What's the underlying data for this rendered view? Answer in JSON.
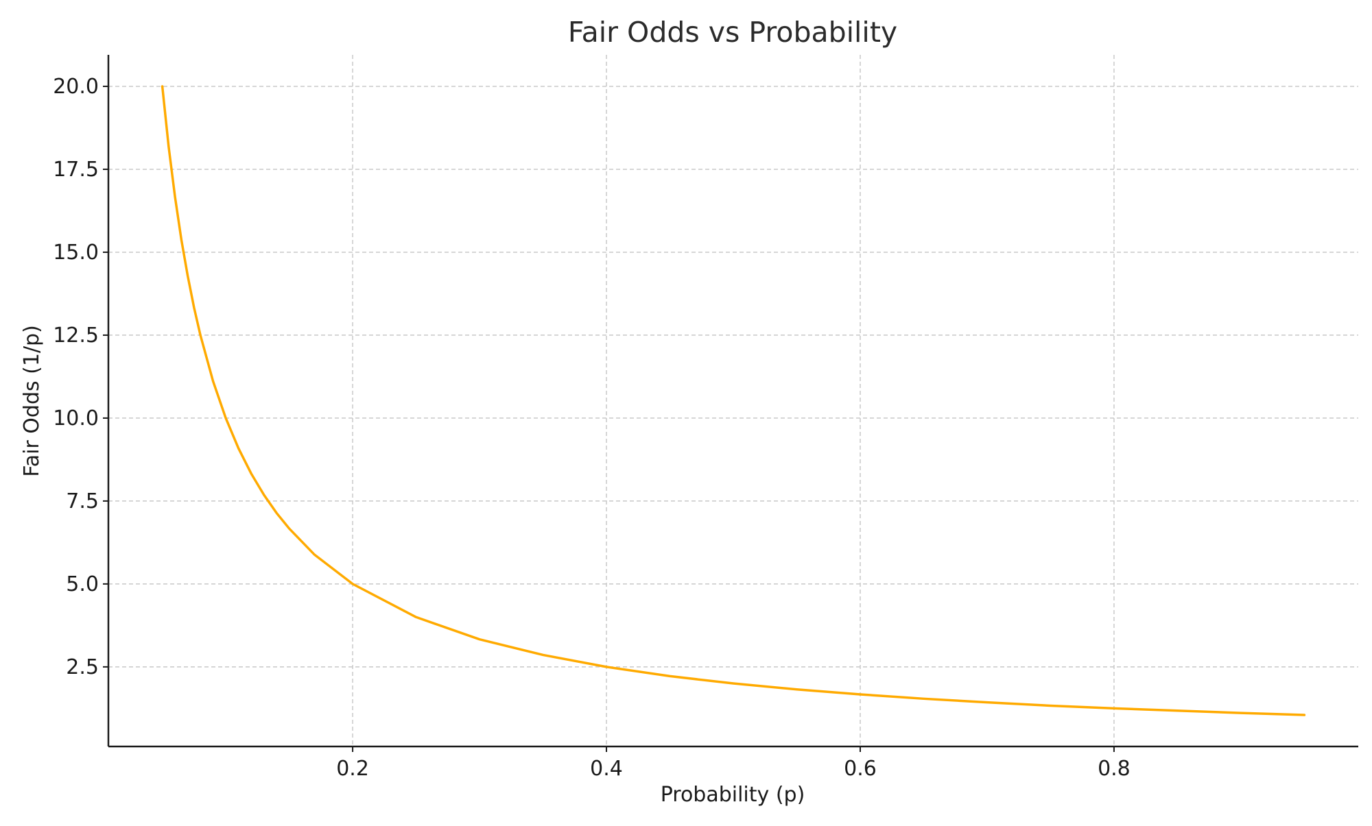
{
  "chart_data": {
    "type": "line",
    "title": "Fair Odds vs Probability",
    "xlabel": "Probability (p)",
    "ylabel": "Fair Odds (1/p)",
    "xlim": [
      0.0075,
      0.9925
    ],
    "ylim": [
      0.1,
      20.95
    ],
    "xticks": [
      {
        "value": 0.2,
        "label": "0.2"
      },
      {
        "value": 0.4,
        "label": "0.4"
      },
      {
        "value": 0.6,
        "label": "0.6"
      },
      {
        "value": 0.8,
        "label": "0.8"
      }
    ],
    "yticks": [
      {
        "value": 2.5,
        "label": "2.5"
      },
      {
        "value": 5.0,
        "label": "5.0"
      },
      {
        "value": 7.5,
        "label": "7.5"
      },
      {
        "value": 10.0,
        "label": "10.0"
      },
      {
        "value": 12.5,
        "label": "12.5"
      },
      {
        "value": 15.0,
        "label": "15.0"
      },
      {
        "value": 17.5,
        "label": "17.5"
      },
      {
        "value": 20.0,
        "label": "20.0"
      }
    ],
    "grid": true,
    "series": [
      {
        "color": "#ffaa00",
        "x": [
          0.05,
          0.055,
          0.06,
          0.065,
          0.07,
          0.075,
          0.08,
          0.09,
          0.1,
          0.11,
          0.12,
          0.13,
          0.14,
          0.15,
          0.17,
          0.2,
          0.25,
          0.3,
          0.35,
          0.4,
          0.45,
          0.5,
          0.55,
          0.6,
          0.65,
          0.7,
          0.75,
          0.8,
          0.85,
          0.9,
          0.95
        ],
        "y": [
          20.0,
          18.18,
          16.67,
          15.38,
          14.29,
          13.33,
          12.5,
          11.11,
          10.0,
          9.09,
          8.33,
          7.69,
          7.14,
          6.67,
          5.88,
          5.0,
          4.0,
          3.33,
          2.86,
          2.5,
          2.22,
          2.0,
          1.82,
          1.67,
          1.54,
          1.43,
          1.33,
          1.25,
          1.18,
          1.11,
          1.05
        ]
      }
    ]
  }
}
